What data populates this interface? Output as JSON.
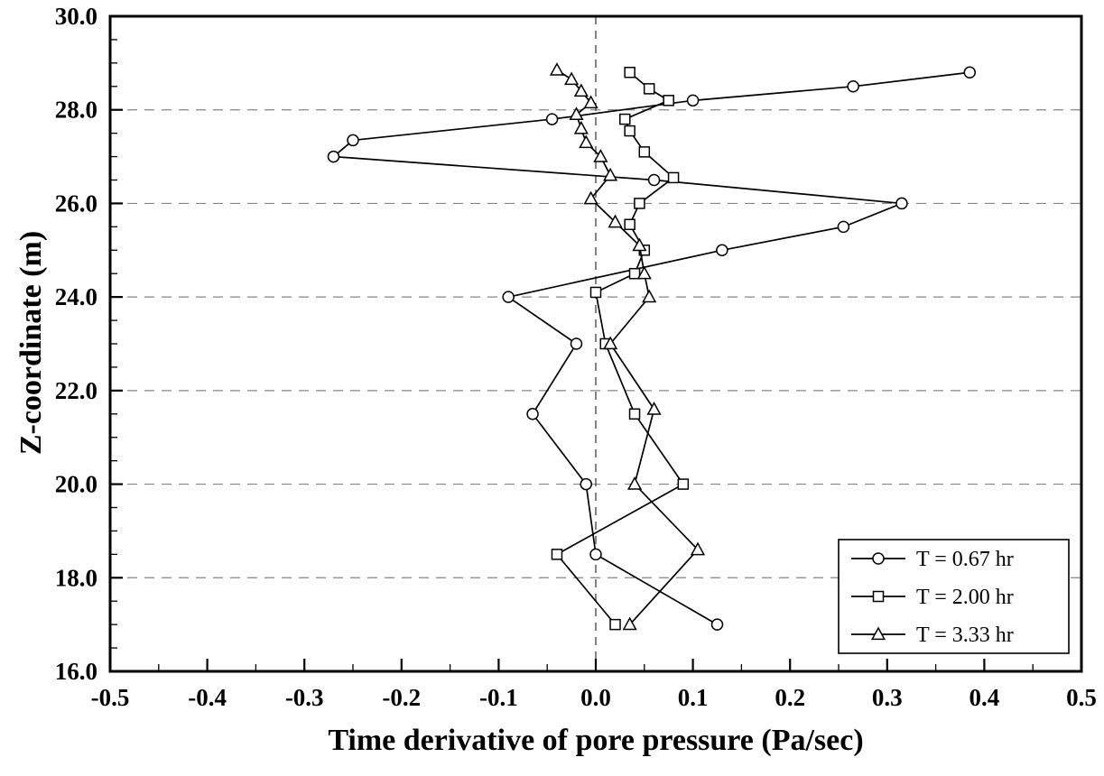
{
  "chart_data": {
    "type": "line",
    "title": "",
    "xlabel": "Time derivative of pore pressure (Pa/sec)",
    "ylabel": "Z-coordinate (m)",
    "xlim": [
      -0.5,
      0.5
    ],
    "ylim": [
      16.0,
      30.0
    ],
    "x_major_step": 0.1,
    "x_minor_step": 0.05,
    "y_major_step": 2.0,
    "y_minor_step": 0.5,
    "x_tick_labels": [
      "-0.5",
      "-0.4",
      "-0.3",
      "-0.2",
      "-0.1",
      "0.0",
      "0.1",
      "0.2",
      "0.3",
      "0.4",
      "0.5"
    ],
    "y_tick_labels": [
      "16.0",
      "18.0",
      "20.0",
      "22.0",
      "24.0",
      "26.0",
      "28.0",
      "30.0"
    ],
    "grid": {
      "style": "dashed",
      "color": "#858585",
      "zero_line_color": "#4d4d4d",
      "horizontal_at": [
        18.0,
        20.0,
        22.0,
        24.0,
        26.0,
        28.0
      ],
      "vertical_at": [
        0.0
      ]
    },
    "legend": {
      "position": "lower-right",
      "entries": [
        "T = 0.67 hr",
        "T = 2.00 hr",
        "T = 3.33 hr"
      ]
    },
    "line_color": "#000000",
    "marker_fill": "#ffffff",
    "series": [
      {
        "name": "T = 0.67 hr",
        "marker": "circle",
        "color": "#000000",
        "points": [
          [
            0.385,
            28.8
          ],
          [
            0.265,
            28.5
          ],
          [
            0.1,
            28.2
          ],
          [
            -0.045,
            27.8
          ],
          [
            -0.25,
            27.35
          ],
          [
            -0.27,
            27.0
          ],
          [
            0.06,
            26.5
          ],
          [
            0.315,
            26.0
          ],
          [
            0.255,
            25.5
          ],
          [
            0.13,
            25.0
          ],
          [
            -0.09,
            24.0
          ],
          [
            -0.02,
            23.0
          ],
          [
            -0.065,
            21.5
          ],
          [
            -0.01,
            20.0
          ],
          [
            0.0,
            18.5
          ],
          [
            0.125,
            17.0
          ]
        ]
      },
      {
        "name": "T = 2.00 hr",
        "marker": "square",
        "color": "#000000",
        "points": [
          [
            0.035,
            28.8
          ],
          [
            0.055,
            28.45
          ],
          [
            0.075,
            28.2
          ],
          [
            0.03,
            27.8
          ],
          [
            0.035,
            27.55
          ],
          [
            0.05,
            27.1
          ],
          [
            0.08,
            26.55
          ],
          [
            0.045,
            26.0
          ],
          [
            0.035,
            25.55
          ],
          [
            0.05,
            25.0
          ],
          [
            0.04,
            24.5
          ],
          [
            0.0,
            24.1
          ],
          [
            0.01,
            23.0
          ],
          [
            0.04,
            21.5
          ],
          [
            0.09,
            20.0
          ],
          [
            -0.04,
            18.5
          ],
          [
            0.02,
            17.0
          ]
        ]
      },
      {
        "name": "T = 3.33 hr",
        "marker": "triangle",
        "color": "#000000",
        "points": [
          [
            -0.04,
            28.85
          ],
          [
            -0.025,
            28.65
          ],
          [
            -0.015,
            28.4
          ],
          [
            -0.005,
            28.15
          ],
          [
            -0.02,
            27.9
          ],
          [
            -0.015,
            27.6
          ],
          [
            -0.01,
            27.3
          ],
          [
            0.005,
            27.0
          ],
          [
            0.015,
            26.6
          ],
          [
            -0.005,
            26.1
          ],
          [
            0.02,
            25.6
          ],
          [
            0.045,
            25.1
          ],
          [
            0.05,
            24.5
          ],
          [
            0.055,
            24.0
          ],
          [
            0.015,
            23.0
          ],
          [
            0.06,
            21.6
          ],
          [
            0.04,
            20.0
          ],
          [
            0.105,
            18.6
          ],
          [
            0.035,
            17.0
          ]
        ]
      }
    ]
  }
}
